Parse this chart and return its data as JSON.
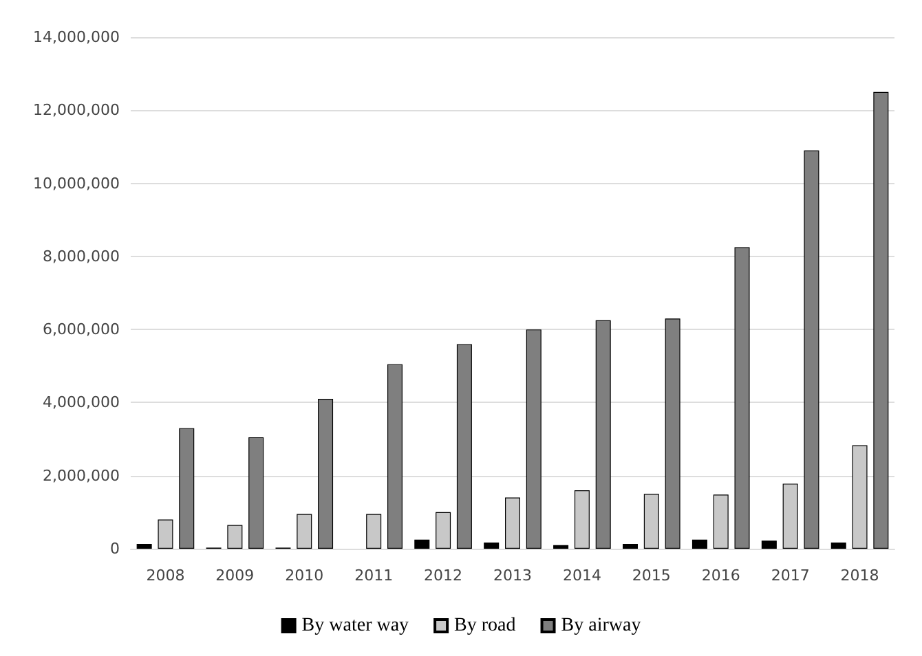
{
  "chart_data": {
    "type": "bar",
    "categories": [
      "2008",
      "2009",
      "2010",
      "2011",
      "2012",
      "2013",
      "2014",
      "2015",
      "2016",
      "2017",
      "2018"
    ],
    "series": [
      {
        "name": "By water way",
        "color": "#000000",
        "values": [
          130000,
          30000,
          30000,
          null,
          250000,
          170000,
          100000,
          130000,
          250000,
          220000,
          170000
        ]
      },
      {
        "name": "By road",
        "color": "#c8c8c8",
        "values": [
          800000,
          650000,
          950000,
          950000,
          1000000,
          1400000,
          1600000,
          1500000,
          1480000,
          1780000,
          2830000
        ]
      },
      {
        "name": "By airway",
        "color": "#7f7f7f",
        "values": [
          3300000,
          3050000,
          4100000,
          5050000,
          5600000,
          6000000,
          6250000,
          6300000,
          8250000,
          10900000,
          12500000
        ]
      }
    ],
    "ylim": [
      0,
      14000000
    ],
    "yticks": [
      0,
      {
        "value": 2000000,
        "label": "2,000,000"
      },
      {
        "value": 4000000,
        "label": "4,000,000"
      },
      {
        "value": 6000000,
        "label": "6,000,000"
      },
      {
        "value": 8000000,
        "label": "8,000,000"
      },
      {
        "value": 10000000,
        "label": "10,000,000"
      },
      {
        "value": 12000000,
        "label": "12,000,000"
      },
      {
        "value": 14000000,
        "label": "14,000,000"
      }
    ],
    "grid": "y",
    "legend": "bottom"
  }
}
